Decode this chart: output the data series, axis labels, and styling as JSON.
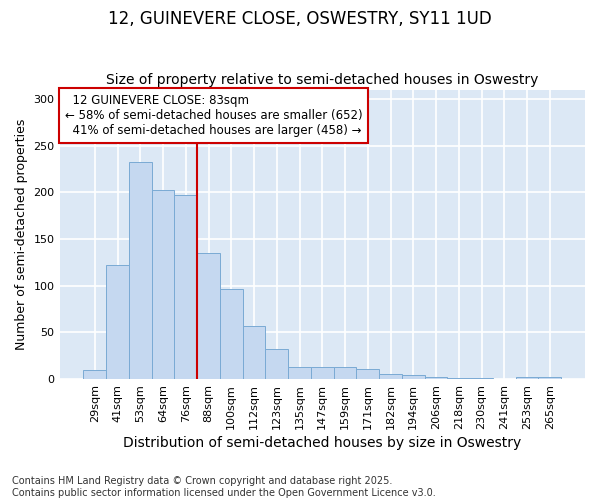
{
  "title": "12, GUINEVERE CLOSE, OSWESTRY, SY11 1UD",
  "subtitle": "Size of property relative to semi-detached houses in Oswestry",
  "xlabel": "Distribution of semi-detached houses by size in Oswestry",
  "ylabel": "Number of semi-detached properties",
  "categories": [
    "29sqm",
    "41sqm",
    "53sqm",
    "64sqm",
    "76sqm",
    "88sqm",
    "100sqm",
    "112sqm",
    "123sqm",
    "135sqm",
    "147sqm",
    "159sqm",
    "171sqm",
    "182sqm",
    "194sqm",
    "206sqm",
    "218sqm",
    "230sqm",
    "241sqm",
    "253sqm",
    "265sqm"
  ],
  "values": [
    10,
    122,
    232,
    203,
    197,
    135,
    97,
    57,
    32,
    13,
    13,
    13,
    11,
    6,
    4,
    2,
    1,
    1,
    0,
    2,
    2
  ],
  "bar_color": "#c5d8f0",
  "bar_edge_color": "#7aaad4",
  "property_label": "12 GUINEVERE CLOSE: 83sqm",
  "pct_smaller": 58,
  "n_smaller": 652,
  "pct_larger": 41,
  "n_larger": 458,
  "vline_color": "#cc0000",
  "vline_x": 5.0,
  "annotation_box_color": "#cc0000",
  "ylim": [
    0,
    310
  ],
  "yticks": [
    0,
    50,
    100,
    150,
    200,
    250,
    300
  ],
  "plot_bg_color": "#dce8f5",
  "fig_bg_color": "#ffffff",
  "footer": "Contains HM Land Registry data © Crown copyright and database right 2025.\nContains public sector information licensed under the Open Government Licence v3.0.",
  "title_fontsize": 12,
  "subtitle_fontsize": 10,
  "xlabel_fontsize": 10,
  "ylabel_fontsize": 9,
  "tick_fontsize": 8,
  "annotation_fontsize": 8.5,
  "footer_fontsize": 7
}
